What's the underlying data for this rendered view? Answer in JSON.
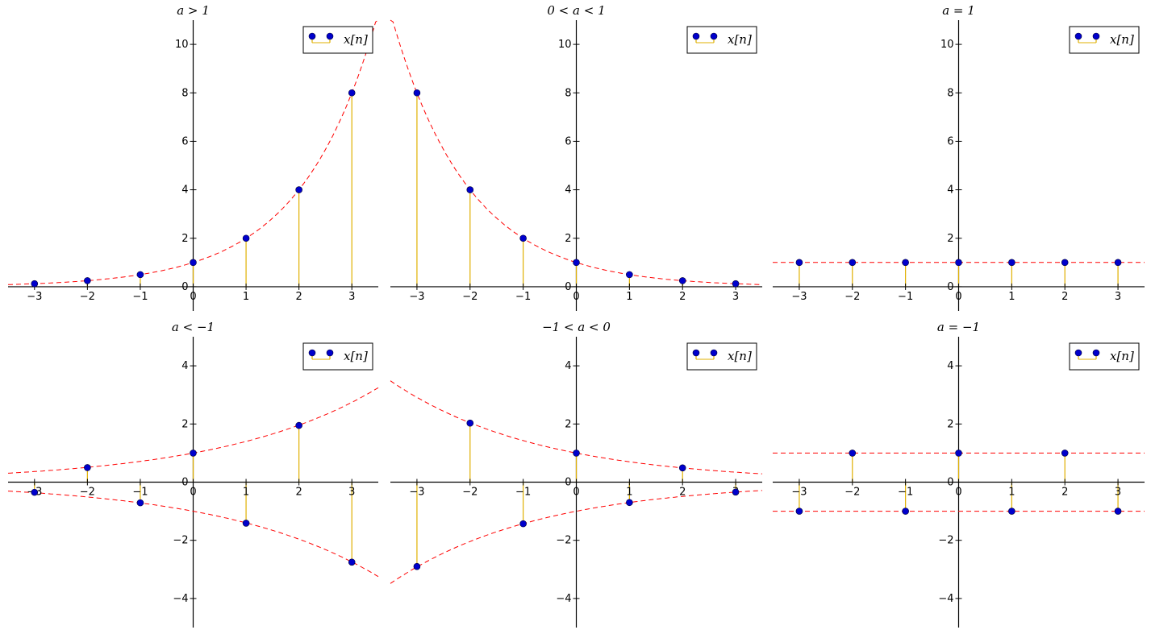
{
  "chart_data": [
    {
      "type": "stem",
      "title": "a > 1",
      "legend": [
        "x[n]"
      ],
      "legend_position": "top-right",
      "xlim": [
        -3.5,
        3.5
      ],
      "ylim": [
        -1,
        11
      ],
      "xticks": [
        -3,
        -2,
        -1,
        0,
        1,
        2,
        3
      ],
      "yticks": [
        0,
        2,
        4,
        6,
        8,
        10
      ],
      "x": [
        -3,
        -2,
        -1,
        0,
        1,
        2,
        3
      ],
      "y": [
        0.125,
        0.25,
        0.5,
        1,
        2,
        4,
        8
      ],
      "envelope_base": 2,
      "envelope_signs": [
        1
      ]
    },
    {
      "type": "stem",
      "title": "0 < a < 1",
      "legend": [
        "x[n]"
      ],
      "legend_position": "top-right",
      "xlim": [
        -3.5,
        3.5
      ],
      "ylim": [
        -1,
        11
      ],
      "xticks": [
        -3,
        -2,
        -1,
        0,
        1,
        2,
        3
      ],
      "yticks": [
        0,
        2,
        4,
        6,
        8,
        10
      ],
      "x": [
        -3,
        -2,
        -1,
        0,
        1,
        2,
        3
      ],
      "y": [
        8,
        4,
        2,
        1,
        0.5,
        0.25,
        0.125
      ],
      "envelope_base": 0.5,
      "envelope_signs": [
        1
      ]
    },
    {
      "type": "stem",
      "title": "a = 1",
      "legend": [
        "x[n]"
      ],
      "legend_position": "top-right",
      "xlim": [
        -3.5,
        3.5
      ],
      "ylim": [
        -1,
        11
      ],
      "xticks": [
        -3,
        -2,
        -1,
        0,
        1,
        2,
        3
      ],
      "yticks": [
        0,
        2,
        4,
        6,
        8,
        10
      ],
      "x": [
        -3,
        -2,
        -1,
        0,
        1,
        2,
        3
      ],
      "y": [
        1,
        1,
        1,
        1,
        1,
        1,
        1
      ],
      "envelope_base": 1,
      "envelope_signs": [
        1
      ]
    },
    {
      "type": "stem",
      "title": "a < −1",
      "legend": [
        "x[n]"
      ],
      "legend_position": "top-right",
      "xlim": [
        -3.5,
        3.5
      ],
      "ylim": [
        -5,
        5
      ],
      "xticks": [
        -3,
        -2,
        -1,
        0,
        1,
        2,
        3
      ],
      "yticks": [
        -4,
        -2,
        0,
        2,
        4
      ],
      "x": [
        -3,
        -2,
        -1,
        0,
        1,
        2,
        3
      ],
      "y": [
        -0.35,
        0.5,
        -0.71,
        1,
        -1.41,
        1.95,
        -2.75
      ],
      "envelope_base": 1.4,
      "envelope_signs": [
        1,
        -1
      ]
    },
    {
      "type": "stem",
      "title": "−1 < a < 0",
      "legend": [
        "x[n]"
      ],
      "legend_position": "top-right",
      "xlim": [
        -3.5,
        3.5
      ],
      "ylim": [
        -5,
        5
      ],
      "xticks": [
        -3,
        -2,
        -1,
        0,
        1,
        2,
        3
      ],
      "yticks": [
        -4,
        -2,
        0,
        2,
        4
      ],
      "x": [
        -3,
        -2,
        -1,
        0,
        1,
        2,
        3
      ],
      "y": [
        -2.9,
        2.03,
        -1.43,
        1,
        -0.7,
        0.49,
        -0.34
      ],
      "envelope_base": 0.7,
      "envelope_signs": [
        1,
        -1
      ]
    },
    {
      "type": "stem",
      "title": "a = −1",
      "legend": [
        "x[n]"
      ],
      "legend_position": "top-right",
      "xlim": [
        -3.5,
        3.5
      ],
      "ylim": [
        -5,
        5
      ],
      "xticks": [
        -3,
        -2,
        -1,
        0,
        1,
        2,
        3
      ],
      "yticks": [
        -4,
        -2,
        0,
        2,
        4
      ],
      "x": [
        -3,
        -2,
        -1,
        0,
        1,
        2,
        3
      ],
      "y": [
        -1,
        1,
        -1,
        1,
        -1,
        1,
        -1
      ],
      "envelope_base": 1,
      "envelope_signs": [
        1,
        -1
      ]
    }
  ],
  "colors": {
    "marker": "#0000cc",
    "stem": "#e0b000",
    "envelope": "#ff0000"
  }
}
